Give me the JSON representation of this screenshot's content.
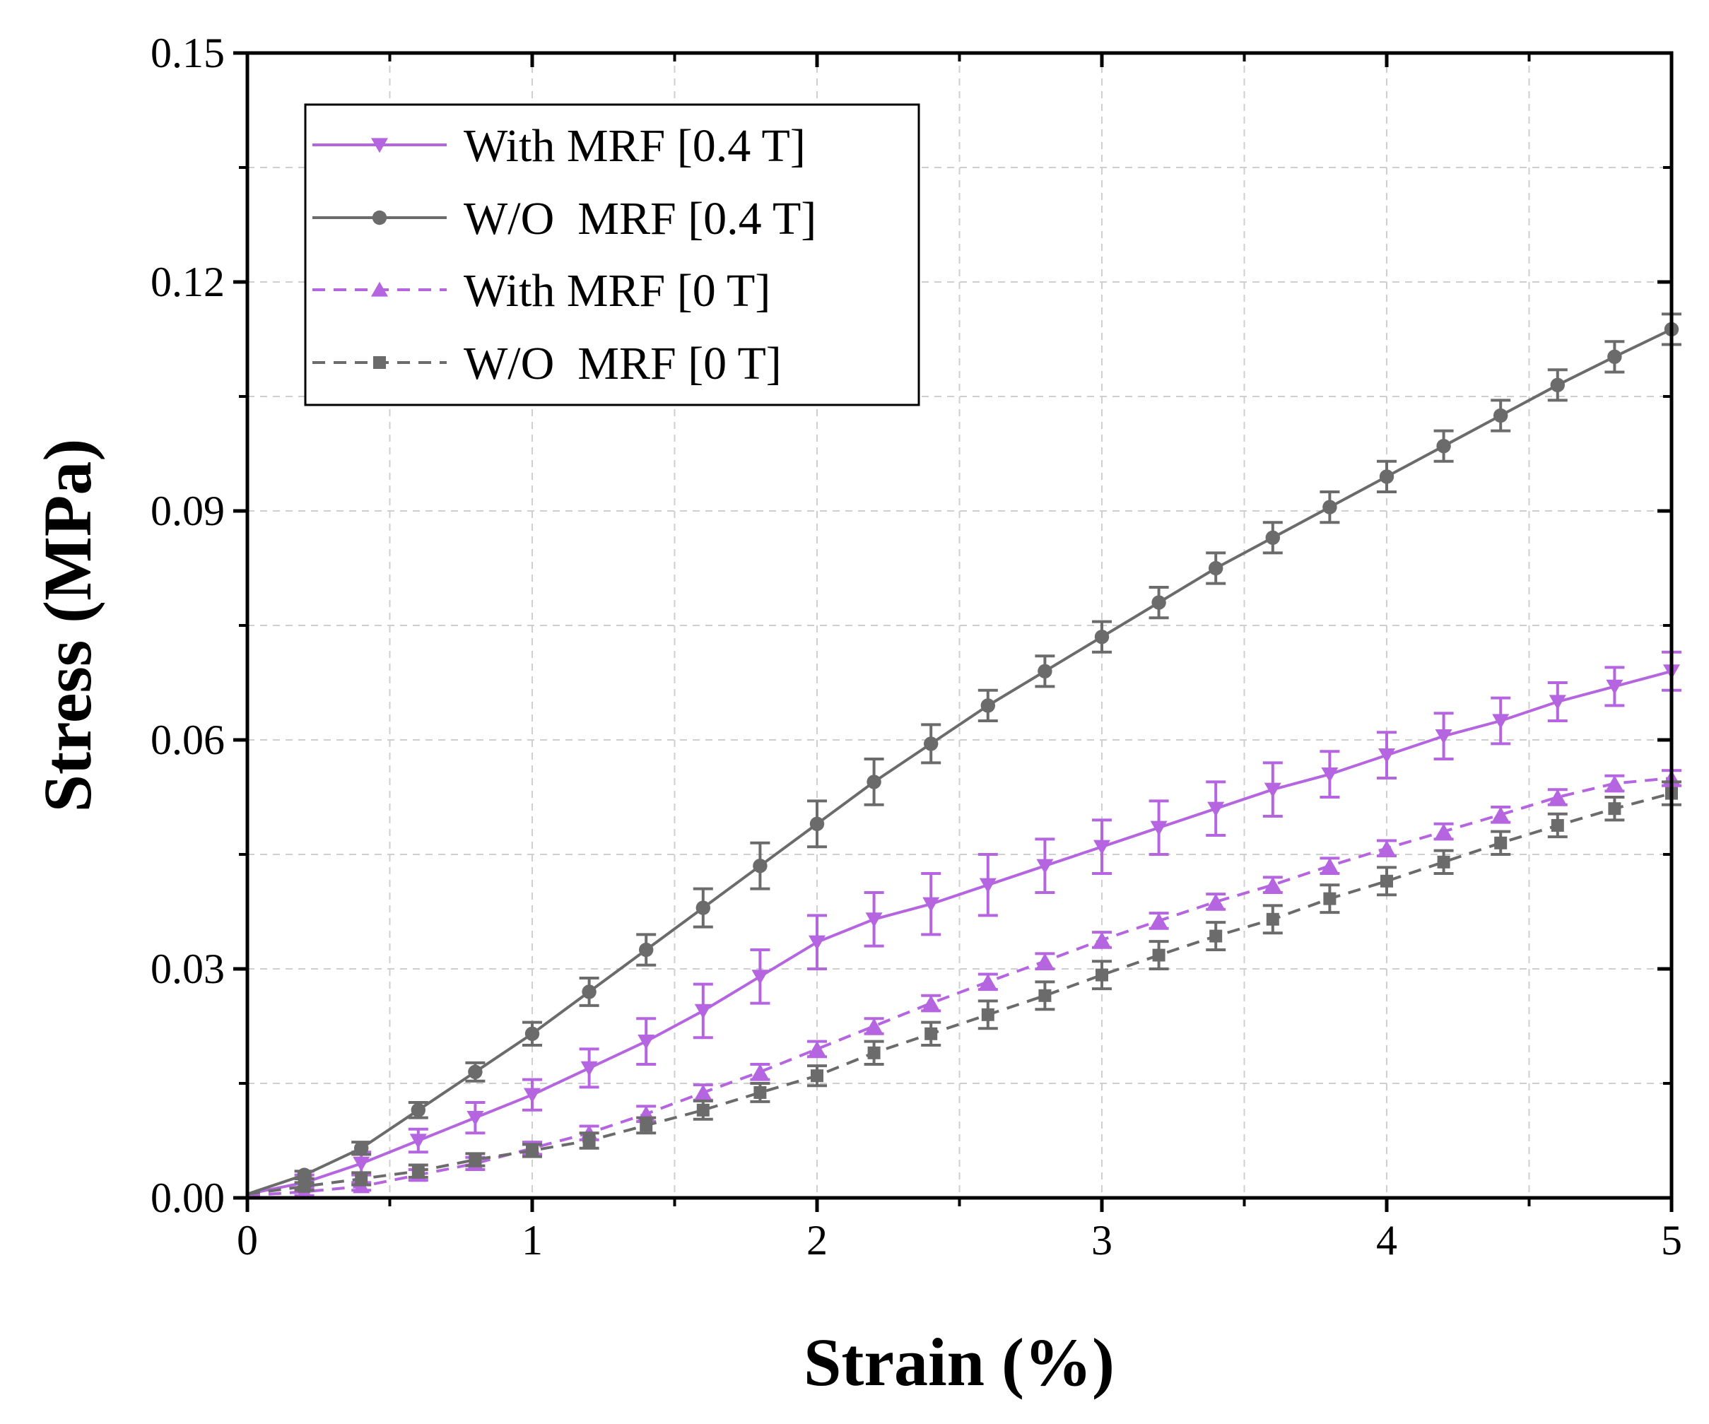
{
  "chart_data": {
    "type": "line",
    "title": "",
    "xlabel": "Strain (%)",
    "ylabel": "Stress (MPa)",
    "xlim": [
      0,
      5
    ],
    "ylim": [
      0,
      0.15
    ],
    "xticks": [
      0,
      1,
      2,
      3,
      4,
      5
    ],
    "xtick_labels": [
      "0",
      "1",
      "2",
      "3",
      "4",
      "5"
    ],
    "yticks": [
      0,
      0.03,
      0.06,
      0.09,
      0.12,
      0.15
    ],
    "ytick_labels": [
      "0.00",
      "0.03",
      "0.06",
      "0.09",
      "0.12",
      "0.15"
    ],
    "grid": true,
    "legend_position": "top-left",
    "series": [
      {
        "name": "With MRF [0.4 T]",
        "color": "#b565e0",
        "dash": "solid",
        "marker": "triangle-down",
        "x": [
          0,
          0.2,
          0.4,
          0.6,
          0.8,
          1.0,
          1.2,
          1.4,
          1.6,
          1.8,
          2.0,
          2.2,
          2.4,
          2.6,
          2.8,
          3.0,
          3.2,
          3.4,
          3.6,
          3.8,
          4.0,
          4.2,
          4.4,
          4.6,
          4.8,
          5.0
        ],
        "y": [
          0.0005,
          0.002,
          0.0045,
          0.0075,
          0.0105,
          0.0135,
          0.017,
          0.0205,
          0.0245,
          0.029,
          0.0335,
          0.0365,
          0.0385,
          0.041,
          0.0435,
          0.046,
          0.0485,
          0.051,
          0.0535,
          0.0555,
          0.058,
          0.0605,
          0.0625,
          0.065,
          0.067,
          0.069
        ],
        "err": [
          0,
          0.001,
          0.0015,
          0.0015,
          0.002,
          0.002,
          0.0025,
          0.003,
          0.0035,
          0.0035,
          0.0035,
          0.0035,
          0.004,
          0.004,
          0.0035,
          0.0035,
          0.0035,
          0.0035,
          0.0035,
          0.003,
          0.003,
          0.003,
          0.003,
          0.0025,
          0.0025,
          0.0025
        ]
      },
      {
        "name": "W/O  MRF [0.4 T]",
        "color": "#6b6b6b",
        "dash": "solid",
        "marker": "circle",
        "x": [
          0,
          0.2,
          0.4,
          0.6,
          0.8,
          1.0,
          1.2,
          1.4,
          1.6,
          1.8,
          2.0,
          2.2,
          2.4,
          2.6,
          2.8,
          3.0,
          3.2,
          3.4,
          3.6,
          3.8,
          4.0,
          4.2,
          4.4,
          4.6,
          4.8,
          5.0
        ],
        "y": [
          0.0005,
          0.003,
          0.0065,
          0.0115,
          0.0165,
          0.0215,
          0.027,
          0.0325,
          0.038,
          0.0435,
          0.049,
          0.0545,
          0.0595,
          0.0645,
          0.069,
          0.0735,
          0.078,
          0.0825,
          0.0865,
          0.0905,
          0.0945,
          0.0985,
          0.1025,
          0.1065,
          0.1102,
          0.1138
        ],
        "err": [
          0,
          0.0005,
          0.0008,
          0.001,
          0.0012,
          0.0015,
          0.0018,
          0.002,
          0.0025,
          0.003,
          0.003,
          0.003,
          0.0025,
          0.002,
          0.002,
          0.002,
          0.002,
          0.002,
          0.002,
          0.002,
          0.002,
          0.002,
          0.002,
          0.002,
          0.002,
          0.002
        ]
      },
      {
        "name": "With MRF [0 T]",
        "color": "#b565e0",
        "dash": "dashed",
        "marker": "triangle-up",
        "x": [
          0,
          0.2,
          0.4,
          0.6,
          0.8,
          1.0,
          1.2,
          1.4,
          1.6,
          1.8,
          2.0,
          2.2,
          2.4,
          2.6,
          2.8,
          3.0,
          3.2,
          3.4,
          3.6,
          3.8,
          4.0,
          4.2,
          4.4,
          4.6,
          4.8,
          5.0
        ],
        "y": [
          0.0003,
          0.0008,
          0.0015,
          0.003,
          0.0045,
          0.0065,
          0.0085,
          0.011,
          0.0138,
          0.0165,
          0.0195,
          0.0225,
          0.0255,
          0.0283,
          0.031,
          0.0338,
          0.0363,
          0.0388,
          0.041,
          0.0435,
          0.0458,
          0.048,
          0.0502,
          0.0525,
          0.0543,
          0.055
        ],
        "err": [
          0,
          0.0005,
          0.0005,
          0.0007,
          0.0008,
          0.0008,
          0.0009,
          0.001,
          0.001,
          0.001,
          0.001,
          0.001,
          0.001,
          0.001,
          0.001,
          0.001,
          0.001,
          0.001,
          0.001,
          0.001,
          0.001,
          0.001,
          0.001,
          0.001,
          0.001,
          0.001
        ]
      },
      {
        "name": "W/O  MRF [0 T]",
        "color": "#6b6b6b",
        "dash": "dashed",
        "marker": "square",
        "x": [
          0,
          0.2,
          0.4,
          0.6,
          0.8,
          1.0,
          1.2,
          1.4,
          1.6,
          1.8,
          2.0,
          2.2,
          2.4,
          2.6,
          2.8,
          3.0,
          3.2,
          3.4,
          3.6,
          3.8,
          4.0,
          4.2,
          4.4,
          4.6,
          4.8,
          5.0
        ],
        "y": [
          0.0005,
          0.0015,
          0.0025,
          0.0035,
          0.005,
          0.0062,
          0.0075,
          0.0095,
          0.0115,
          0.0138,
          0.016,
          0.019,
          0.0215,
          0.024,
          0.0265,
          0.0292,
          0.0318,
          0.0343,
          0.0365,
          0.0392,
          0.0415,
          0.044,
          0.0465,
          0.0488,
          0.051,
          0.053
        ],
        "err": [
          0,
          0.0005,
          0.0008,
          0.0008,
          0.0008,
          0.0008,
          0.001,
          0.001,
          0.0012,
          0.0012,
          0.0013,
          0.0015,
          0.0015,
          0.0018,
          0.0018,
          0.0018,
          0.0018,
          0.0018,
          0.0018,
          0.0018,
          0.0018,
          0.0015,
          0.0015,
          0.0015,
          0.0015,
          0.0015
        ]
      }
    ]
  }
}
